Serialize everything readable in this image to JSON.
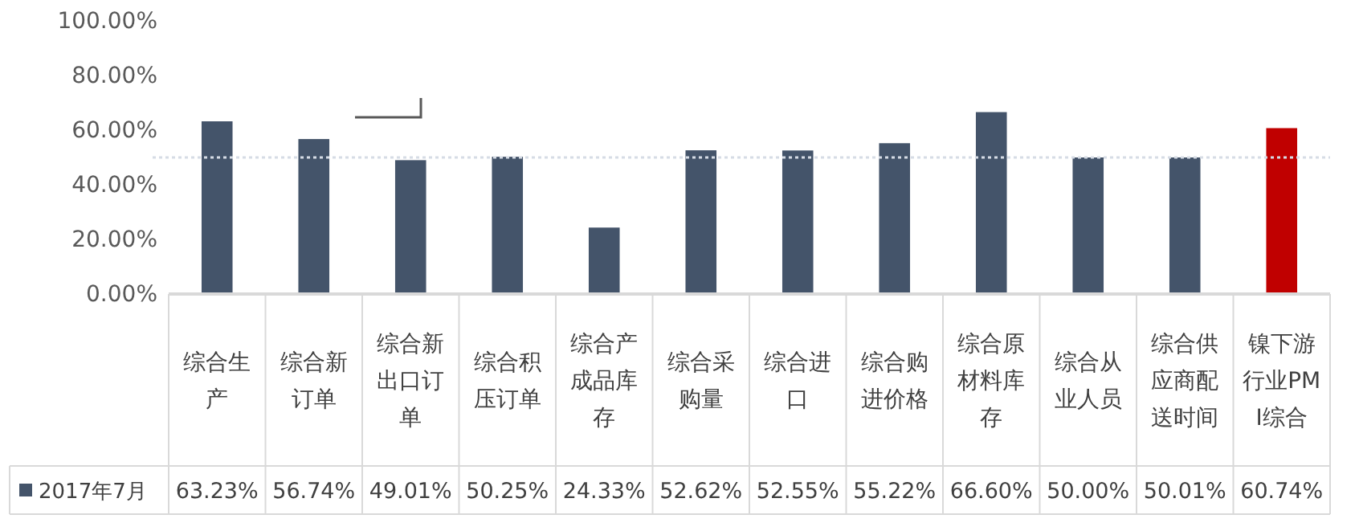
{
  "chart_data": {
    "type": "bar",
    "categories": [
      "综合生产",
      "综合新订单",
      "综合新出口订单",
      "综合积压订单",
      "综合产成品库存",
      "综合采购量",
      "综合进口",
      "综合购进价格",
      "综合原材料库存",
      "综合从业人员",
      "综合供应商配送时间",
      "镍下游行业PMI综合"
    ],
    "series": [
      {
        "name": "2017年7月",
        "color": "#44546a",
        "colors": [
          "#44546a",
          "#44546a",
          "#44546a",
          "#44546a",
          "#44546a",
          "#44546a",
          "#44546a",
          "#44546a",
          "#44546a",
          "#44546a",
          "#44546a",
          "#c00000"
        ],
        "values": [
          63.23,
          56.74,
          49.01,
          50.25,
          24.33,
          52.62,
          52.55,
          55.22,
          66.6,
          50.0,
          50.01,
          60.74
        ],
        "value_labels": [
          "63.23%",
          "56.74%",
          "49.01%",
          "50.25%",
          "24.33%",
          "52.62%",
          "52.55%",
          "55.22%",
          "66.60%",
          "50.00%",
          "50.01%",
          "60.74%"
        ]
      }
    ],
    "ylim": [
      0,
      100
    ],
    "yticks": [
      {
        "value": 0,
        "label": "0.00%"
      },
      {
        "value": 20,
        "label": "20.00%"
      },
      {
        "value": 40,
        "label": "40.00%"
      },
      {
        "value": 60,
        "label": "60.00%"
      },
      {
        "value": 80,
        "label": "80.00%"
      },
      {
        "value": 100,
        "label": "100.00%"
      }
    ],
    "ref_lines": [
      {
        "axis": "y",
        "value": 50,
        "label": null,
        "color": "#d6dce5",
        "line_style": "dotted"
      }
    ],
    "legend": "bottom",
    "grid": false
  }
}
